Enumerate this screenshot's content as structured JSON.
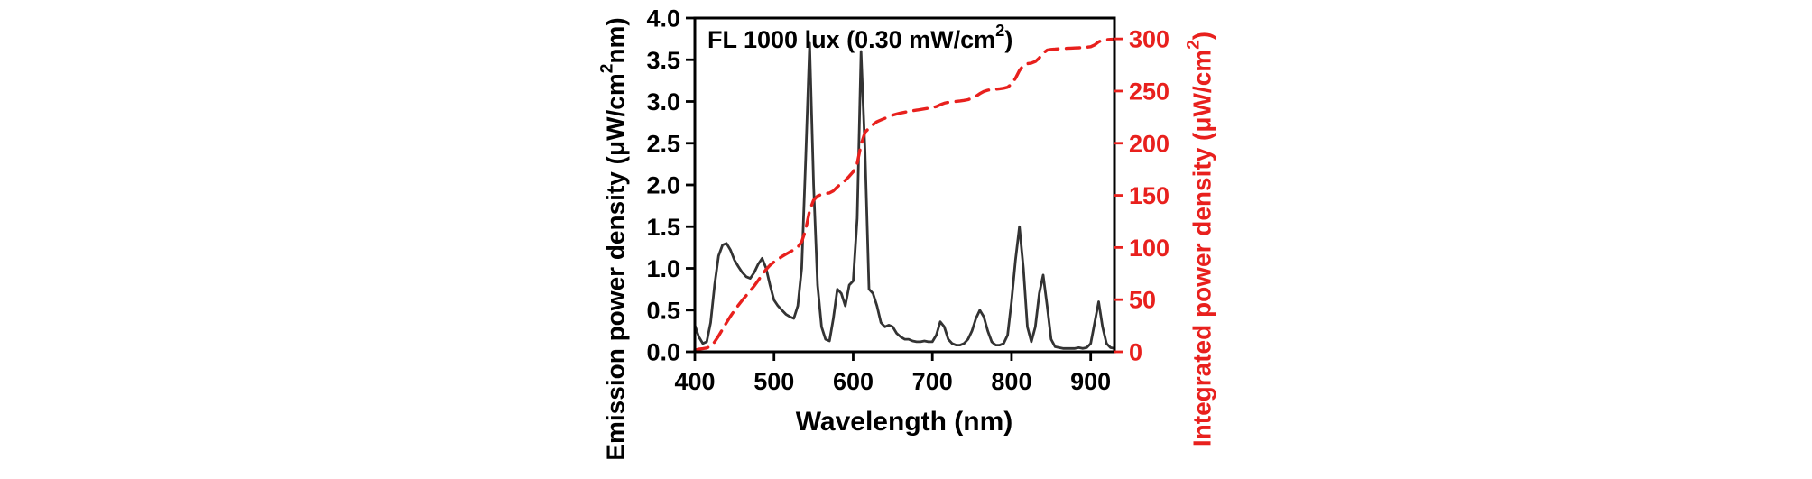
{
  "labels": {
    "annotation": {
      "pre": "FL 1000 lux (0.30 mW/cm",
      "sup": "2",
      "post": ")"
    },
    "left_axis": {
      "pre": "Emission power density (μW/cm",
      "sup": "2",
      "post": "nm)"
    },
    "right_axis": {
      "pre": "Integrated power density (μW/cm",
      "sup": "2",
      "post": ")"
    },
    "x_axis": "Wavelength (nm)"
  },
  "colors": {
    "emission": "#333333",
    "integrated": "#e8201d",
    "frame": "#000000"
  },
  "chart_data": {
    "type": "line",
    "title": "",
    "annotation": "FL 1000 lux (0.30 mW/cm²)",
    "xlabel": "Wavelength (nm)",
    "ylabel_left": "Emission power density (μW/cm²nm)",
    "ylabel_right": "Integrated power density (μW/cm²)",
    "xlim": [
      400,
      930
    ],
    "ylim_left": [
      0,
      4.0
    ],
    "ylim_right": [
      0,
      320
    ],
    "grid": false,
    "legend": "none",
    "x_ticks": [
      400,
      500,
      600,
      700,
      800,
      900
    ],
    "x_tick_labels": [
      "400",
      "500",
      "600",
      "700",
      "800",
      "900"
    ],
    "left_ticks": [
      0,
      0.5,
      1.0,
      1.5,
      2.0,
      2.5,
      3.0,
      3.5,
      4.0
    ],
    "left_tick_labels": [
      "0.0",
      "0.5",
      "1.0",
      "1.5",
      "2.0",
      "2.5",
      "3.0",
      "3.5",
      "4.0"
    ],
    "right_ticks": [
      0,
      50,
      100,
      150,
      200,
      250,
      300
    ],
    "right_tick_labels": [
      "0",
      "50",
      "100",
      "150",
      "200",
      "250",
      "300"
    ],
    "x": [
      400,
      405,
      410,
      415,
      420,
      425,
      430,
      435,
      440,
      445,
      450,
      455,
      460,
      465,
      470,
      475,
      480,
      485,
      490,
      495,
      500,
      505,
      510,
      515,
      520,
      525,
      530,
      535,
      540,
      545,
      550,
      555,
      560,
      565,
      570,
      575,
      580,
      585,
      590,
      595,
      600,
      605,
      610,
      615,
      620,
      625,
      630,
      635,
      640,
      645,
      650,
      655,
      660,
      665,
      670,
      675,
      680,
      685,
      690,
      695,
      700,
      705,
      710,
      715,
      720,
      725,
      730,
      735,
      740,
      745,
      750,
      755,
      760,
      765,
      770,
      775,
      780,
      785,
      790,
      795,
      800,
      805,
      810,
      815,
      820,
      825,
      830,
      835,
      840,
      845,
      850,
      855,
      860,
      865,
      870,
      875,
      880,
      885,
      890,
      895,
      900,
      905,
      910,
      915,
      920,
      925,
      930
    ],
    "series": [
      {
        "name": "Emission power density",
        "axis": "left",
        "style": "solid",
        "color": "#333333",
        "values": [
          0.32,
          0.18,
          0.1,
          0.12,
          0.35,
          0.8,
          1.15,
          1.28,
          1.3,
          1.22,
          1.1,
          1.02,
          0.95,
          0.9,
          0.88,
          0.95,
          1.05,
          1.12,
          1.0,
          0.8,
          0.62,
          0.55,
          0.5,
          0.45,
          0.42,
          0.4,
          0.55,
          1.0,
          2.3,
          3.7,
          2.0,
          0.8,
          0.3,
          0.15,
          0.13,
          0.4,
          0.75,
          0.7,
          0.55,
          0.8,
          0.85,
          1.6,
          3.6,
          2.4,
          0.75,
          0.7,
          0.55,
          0.35,
          0.3,
          0.32,
          0.3,
          0.22,
          0.18,
          0.15,
          0.15,
          0.13,
          0.12,
          0.12,
          0.13,
          0.12,
          0.12,
          0.2,
          0.36,
          0.3,
          0.15,
          0.1,
          0.08,
          0.08,
          0.1,
          0.15,
          0.25,
          0.4,
          0.5,
          0.42,
          0.25,
          0.12,
          0.08,
          0.08,
          0.1,
          0.2,
          0.6,
          1.1,
          1.5,
          1.0,
          0.3,
          0.12,
          0.3,
          0.7,
          0.92,
          0.55,
          0.15,
          0.06,
          0.05,
          0.04,
          0.04,
          0.04,
          0.04,
          0.05,
          0.04,
          0.05,
          0.1,
          0.35,
          0.6,
          0.3,
          0.1,
          0.05,
          0.04
        ]
      },
      {
        "name": "Integrated power density",
        "axis": "right",
        "style": "dashed",
        "color": "#e8201d",
        "values": [
          1.6,
          2.5,
          3.0,
          3.6,
          5.4,
          9.4,
          15.1,
          21.5,
          28.0,
          34.1,
          39.6,
          44.7,
          49.5,
          54.0,
          58.4,
          63.1,
          68.4,
          74.0,
          79.0,
          83.0,
          86.1,
          88.8,
          91.3,
          93.6,
          95.7,
          97.7,
          100.4,
          105.4,
          116.9,
          135.4,
          145.4,
          149.4,
          150.9,
          151.7,
          152.3,
          154.3,
          158.1,
          161.6,
          164.3,
          168.3,
          172.6,
          180.6,
          198.6,
          210.6,
          214.3,
          217.8,
          220.6,
          222.3,
          223.8,
          225.4,
          226.9,
          228.0,
          228.9,
          229.7,
          230.4,
          231.1,
          231.7,
          232.3,
          232.9,
          233.5,
          234.1,
          235.1,
          236.9,
          238.4,
          239.2,
          239.7,
          240.1,
          240.5,
          241.0,
          241.7,
          243.0,
          245.0,
          247.5,
          249.6,
          250.8,
          251.4,
          251.8,
          252.2,
          252.7,
          253.7,
          256.7,
          262.2,
          269.7,
          274.7,
          276.2,
          276.8,
          278.3,
          281.8,
          286.4,
          289.2,
          289.9,
          290.2,
          290.5,
          290.7,
          290.9,
          291.1,
          291.3,
          291.5,
          291.7,
          292.0,
          292.5,
          294.2,
          297.2,
          298.7,
          299.2,
          299.5,
          299.7
        ]
      }
    ]
  }
}
